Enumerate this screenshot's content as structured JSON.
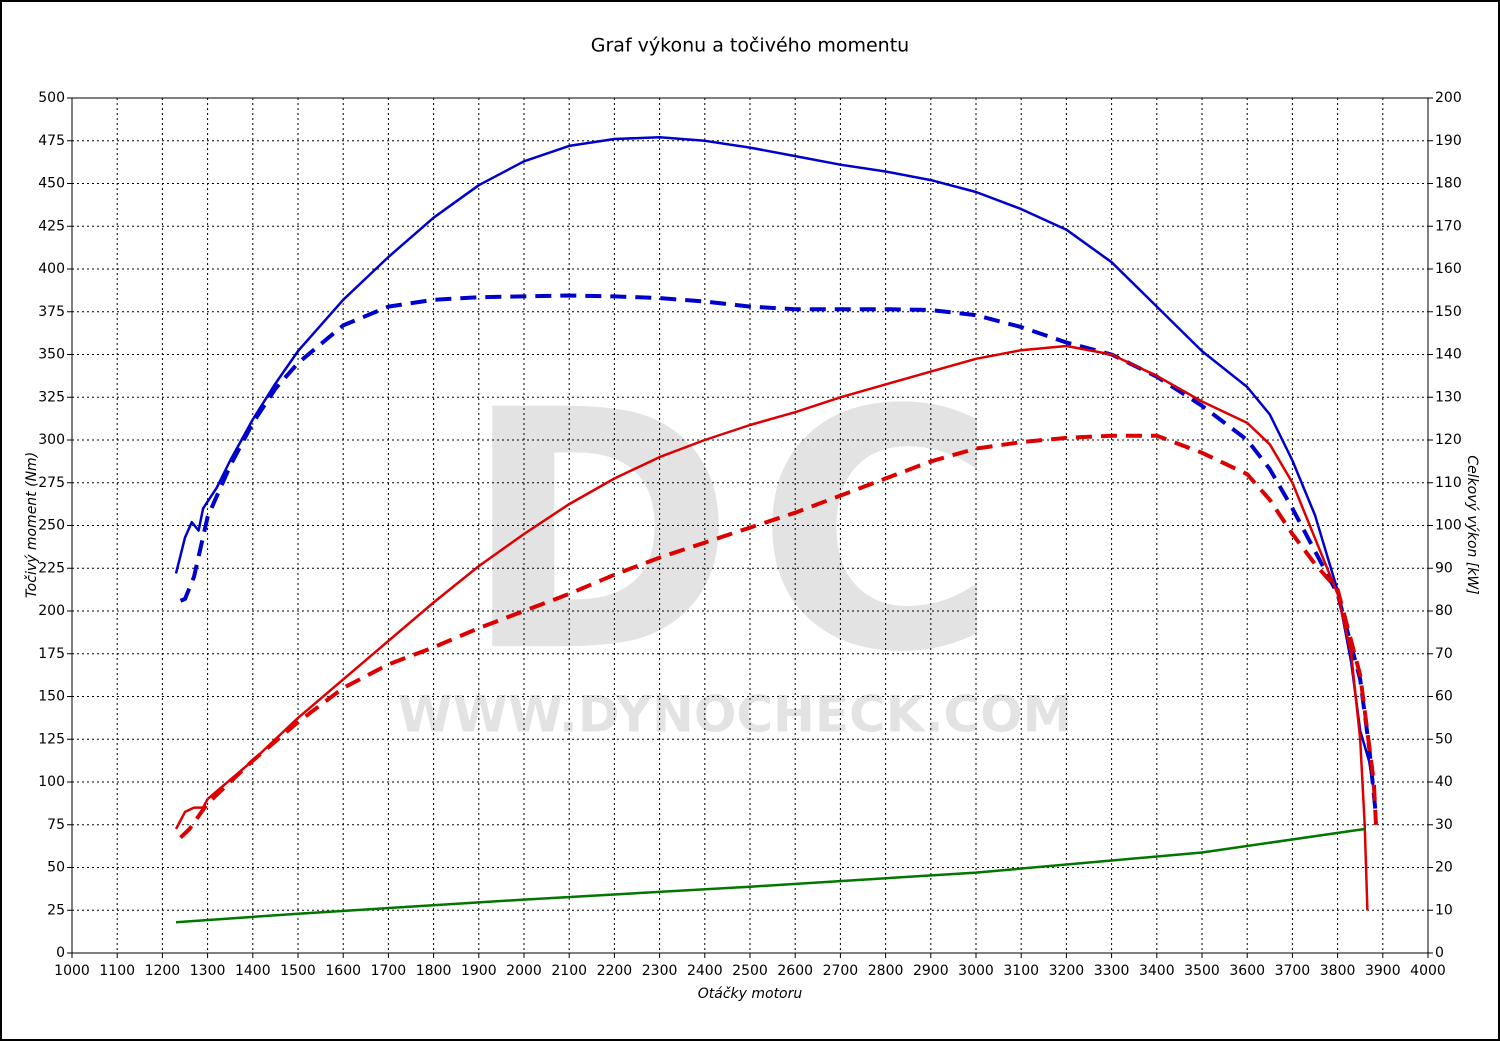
{
  "chart_data": {
    "type": "line",
    "title": "Graf výkonu a točivého momentu",
    "x_label": "Otáčky motoru",
    "y_label": "Točivý moment (Nm)",
    "y2_label": "Celkový výkon [kW]",
    "watermark": "DC",
    "watermark_url": "WWW.DYNOCHECK.COM",
    "grid": true,
    "xlim": [
      1000,
      4000
    ],
    "xticks": [
      1000,
      1100,
      1200,
      1300,
      1400,
      1500,
      1600,
      1700,
      1800,
      1900,
      2000,
      2100,
      2200,
      2300,
      2400,
      2500,
      2600,
      2700,
      2800,
      2900,
      3000,
      3100,
      3200,
      3300,
      3400,
      3500,
      3600,
      3700,
      3800,
      3900,
      4000
    ],
    "ylim": [
      0,
      500
    ],
    "yticks": [
      0,
      25,
      50,
      75,
      100,
      125,
      150,
      175,
      200,
      225,
      250,
      275,
      300,
      325,
      350,
      375,
      400,
      425,
      450,
      475,
      500
    ],
    "y2lim": [
      0,
      200
    ],
    "y2ticks": [
      0,
      10,
      20,
      30,
      40,
      50,
      60,
      70,
      80,
      90,
      100,
      110,
      120,
      130,
      140,
      150,
      160,
      170,
      180,
      190,
      200
    ],
    "series": [
      {
        "color": "#0000cc",
        "dashed": false,
        "axis": "y",
        "x": [
          1230,
          1250,
          1265,
          1280,
          1290,
          1320,
          1350,
          1400,
          1450,
          1500,
          1600,
          1700,
          1800,
          1900,
          2000,
          2100,
          2200,
          2300,
          2400,
          2500,
          2600,
          2700,
          2800,
          2900,
          3000,
          3100,
          3200,
          3300,
          3400,
          3500,
          3600,
          3650,
          3700,
          3750,
          3800,
          3830,
          3850,
          3870,
          3880
        ],
        "values": [
          222,
          243,
          252,
          247,
          260,
          272,
          288,
          312,
          333,
          352,
          382,
          407,
          430,
          449,
          463,
          472,
          476,
          477,
          475,
          471,
          466,
          461,
          457,
          452,
          445,
          435,
          423,
          404,
          378,
          352,
          331,
          315,
          288,
          256,
          212,
          170,
          130,
          112,
          95
        ]
      },
      {
        "color": "#0000cc",
        "dashed": true,
        "axis": "y",
        "x": [
          1240,
          1250,
          1270,
          1300,
          1350,
          1400,
          1450,
          1500,
          1600,
          1700,
          1800,
          1900,
          2000,
          2100,
          2200,
          2300,
          2400,
          2500,
          2600,
          2700,
          2800,
          2900,
          3000,
          3100,
          3200,
          3300,
          3400,
          3500,
          3600,
          3650,
          3700,
          3750,
          3800,
          3850,
          3870,
          3885
        ],
        "values": [
          206,
          207,
          220,
          255,
          285,
          310,
          330,
          345,
          367,
          378,
          382,
          383.5,
          384,
          384.5,
          384,
          383,
          381,
          378,
          376.5,
          376.5,
          376.5,
          376,
          373,
          366,
          357,
          350,
          337,
          320,
          300,
          283,
          260,
          235,
          210,
          160,
          120,
          80
        ]
      },
      {
        "color": "#dd0000",
        "dashed": false,
        "axis": "y2",
        "x": [
          1230,
          1250,
          1270,
          1290,
          1300,
          1400,
          1500,
          1600,
          1700,
          1800,
          1900,
          2000,
          2100,
          2200,
          2300,
          2400,
          2500,
          2600,
          2700,
          2800,
          2900,
          3000,
          3100,
          3200,
          3300,
          3400,
          3500,
          3600,
          3650,
          3700,
          3750,
          3800,
          3830,
          3850,
          3860,
          3866
        ],
        "values": [
          29,
          33,
          34,
          34,
          36,
          45,
          55,
          64,
          73,
          82,
          90.5,
          98,
          105,
          111,
          116,
          120,
          123.5,
          126.5,
          130,
          133,
          136,
          139,
          141,
          142,
          140,
          135,
          129,
          124,
          119,
          110,
          97,
          84,
          70,
          50,
          30,
          10
        ]
      },
      {
        "color": "#dd0000",
        "dashed": true,
        "axis": "y2",
        "x": [
          1240,
          1260,
          1300,
          1400,
          1500,
          1600,
          1700,
          1800,
          1900,
          2000,
          2100,
          2200,
          2300,
          2400,
          2500,
          2600,
          2700,
          2800,
          2900,
          3000,
          3100,
          3200,
          3300,
          3400,
          3500,
          3600,
          3650,
          3700,
          3750,
          3800,
          3850,
          3880,
          3885
        ],
        "values": [
          27,
          29,
          35,
          45,
          54,
          62,
          67.5,
          71.5,
          76,
          80,
          84,
          88.5,
          92.5,
          96,
          99.5,
          103,
          107,
          111,
          115,
          118,
          119.5,
          120.5,
          121,
          121,
          117,
          112,
          106,
          98,
          91,
          85,
          65,
          40,
          30
        ]
      },
      {
        "color": "#007700",
        "dashed": false,
        "axis": "y2",
        "x": [
          1230,
          1500,
          2000,
          2500,
          3000,
          3500,
          3860
        ],
        "values": [
          7.2,
          9.2,
          12.5,
          15.5,
          18.8,
          23.5,
          29
        ]
      }
    ]
  }
}
